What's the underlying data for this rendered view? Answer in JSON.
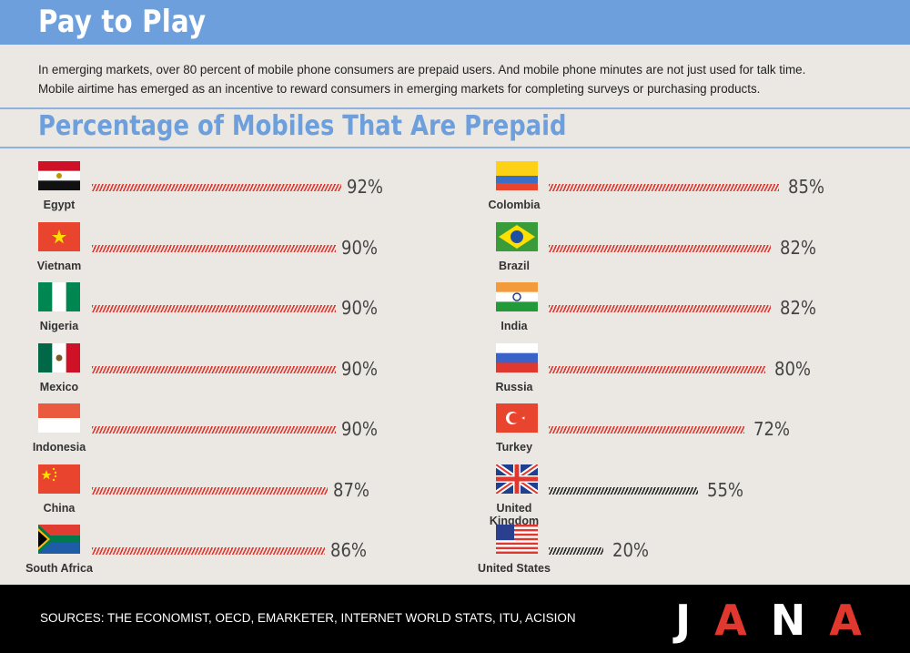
{
  "header": {
    "title": "Pay to Play"
  },
  "intro": {
    "line1": "In emerging markets, over 80 percent of mobile phone consumers are prepaid users. And mobile phone minutes are not just used for talk time.",
    "line2": "Mobile airtime has emerged as an incentive to reward consumers in emerging markets for completing surveys or purchasing products."
  },
  "chart_data": {
    "type": "bar",
    "title": "Percentage of Mobiles That Are Prepaid",
    "unit": "%",
    "xlim": [
      0,
      100
    ],
    "series": [
      {
        "name": "",
        "categories": [
          "Egypt",
          "Vietnam",
          "Nigeria",
          "Mexico",
          "Indonesia",
          "China",
          "South Africa"
        ],
        "values": [
          92,
          90,
          90,
          90,
          90,
          87,
          86
        ],
        "labels": [
          "92%",
          "90%",
          "90%",
          "90%",
          "90%",
          "87%",
          "86%"
        ]
      },
      {
        "name": "",
        "categories": [
          "Colombia",
          "Brazil",
          "India",
          "Russia",
          "Turkey",
          "United Kingdom",
          "United States"
        ],
        "values": [
          85,
          82,
          82,
          80,
          72,
          55,
          20
        ],
        "labels": [
          "85%",
          "82%",
          "82%",
          "80%",
          "72%",
          "55%",
          "20%"
        ]
      }
    ],
    "colors": {
      "emerging": "#e0372f",
      "developed": "#2a2a2a"
    },
    "developed": [
      "United Kingdom",
      "United States"
    ]
  },
  "footer": {
    "sources": "SOURCES: THE ECONOMIST, OECD, EMARKETER, INTERNET WORLD STATS, ITU, ACISION",
    "logo": [
      "J",
      "A",
      "N",
      "A"
    ],
    "logo_colors": [
      "#ffffff",
      "#e0372f",
      "#ffffff",
      "#e0372f"
    ]
  }
}
